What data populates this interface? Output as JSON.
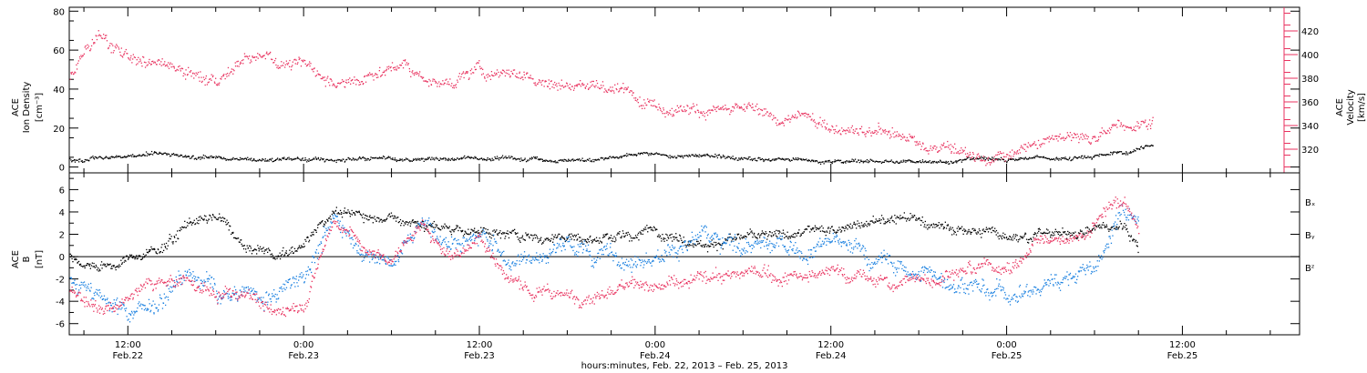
{
  "figure": {
    "xaxis_title": "hours:minutes, Feb. 22, 2013 – Feb. 25, 2013"
  },
  "colors": {
    "black": "#000000",
    "pink": "#e8325f",
    "blue": "#1a80e0"
  },
  "chart_data": [
    {
      "type": "scatter",
      "panel": "top",
      "ylabel_left": [
        "ACE",
        "Ion Density",
        "[cm⁻³]"
      ],
      "ylabel_right": [
        "ACE",
        "Velocity",
        "[km/s]"
      ],
      "xlim_hours": [
        8,
        92
      ],
      "x_ticks": [
        {
          "hour": 12,
          "label": "12:00",
          "sub": "Feb.22"
        },
        {
          "hour": 24,
          "label": "0:00",
          "sub": "Feb.23"
        },
        {
          "hour": 36,
          "label": "12:00",
          "sub": "Feb.23"
        },
        {
          "hour": 48,
          "label": "0:00",
          "sub": "Feb.24"
        },
        {
          "hour": 60,
          "label": "12:00",
          "sub": "Feb.24"
        },
        {
          "hour": 72,
          "label": "0:00",
          "sub": "Feb.25"
        },
        {
          "hour": 84,
          "label": "12:00",
          "sub": "Feb.25"
        }
      ],
      "ylim_left": [
        -3,
        82
      ],
      "yticks_left": [
        0,
        20,
        40,
        60,
        80
      ],
      "ylim_right": [
        300,
        440
      ],
      "yticks_right": [
        320,
        340,
        360,
        380,
        400,
        420
      ],
      "series": [
        {
          "color": "black",
          "axis": "left",
          "dots": 1300,
          "noise": 1.0,
          "start": 8,
          "end": 82,
          "x": [
            8,
            10,
            14,
            18,
            22,
            26,
            30,
            34,
            38,
            42,
            46,
            50,
            54,
            58,
            62,
            66,
            70,
            74,
            78,
            80,
            82
          ],
          "y": [
            4,
            5,
            6,
            5.5,
            4.5,
            4,
            4.5,
            5,
            5,
            4.5,
            5.5,
            6,
            5,
            4,
            3.5,
            3.5,
            4,
            4.5,
            6,
            8,
            12
          ]
        },
        {
          "color": "pink",
          "axis": "right",
          "dots": 1400,
          "noise": 5,
          "start": 8,
          "end": 82,
          "x": [
            8,
            9,
            10,
            11,
            12,
            14,
            16,
            18,
            20,
            22,
            24,
            26,
            28,
            30,
            32,
            34,
            36,
            38,
            40,
            42,
            44,
            46,
            48,
            50,
            52,
            54,
            56,
            58,
            60,
            62,
            64,
            66,
            68,
            70,
            71,
            72,
            73,
            74,
            76,
            78,
            80,
            82
          ],
          "y": [
            380,
            400,
            420,
            405,
            400,
            395,
            382,
            380,
            400,
            398,
            395,
            382,
            385,
            392,
            382,
            378,
            384,
            386,
            380,
            376,
            372,
            368,
            362,
            358,
            353,
            348,
            342,
            345,
            338,
            336,
            332,
            326,
            320,
            313,
            311,
            315,
            322,
            327,
            327,
            333,
            342,
            347
          ]
        }
      ]
    },
    {
      "type": "scatter",
      "panel": "bottom",
      "ylabel_left": [
        "ACE",
        "B",
        "[nT]"
      ],
      "xlim_hours": [
        8,
        92
      ],
      "ylim": [
        -7,
        7.5
      ],
      "yticks": [
        -6,
        -4,
        -2,
        0,
        2,
        4,
        6
      ],
      "legend": [
        "Bₓ",
        "Bᵧ",
        "Bᶻ"
      ],
      "series": [
        {
          "color": "black",
          "dots": 1500,
          "noise": 0.45,
          "start": 8,
          "end": 81,
          "x": [
            8,
            10,
            12,
            14,
            16,
            18,
            20,
            22,
            24,
            26,
            28,
            30,
            32,
            34,
            36,
            38,
            40,
            42,
            44,
            46,
            48,
            50,
            52,
            54,
            56,
            58,
            60,
            62,
            64,
            66,
            68,
            70,
            72,
            74,
            76,
            78,
            80,
            81
          ],
          "y": [
            0,
            -1,
            0,
            1,
            3,
            4,
            1,
            0,
            1,
            4,
            3.5,
            4,
            3,
            2.5,
            2.5,
            2,
            1.5,
            2,
            1.5,
            2,
            2.5,
            2,
            1.5,
            1.5,
            1.5,
            2,
            2.5,
            3,
            3,
            3,
            2.5,
            2.5,
            2,
            2,
            2,
            2.5,
            3,
            0.5
          ]
        },
        {
          "color": "blue",
          "dots": 1600,
          "noise": 0.75,
          "start": 8,
          "end": 81,
          "x": [
            8,
            10,
            12,
            14,
            16,
            18,
            20,
            22,
            24,
            26,
            28,
            30,
            32,
            34,
            36,
            38,
            40,
            42,
            44,
            46,
            48,
            50,
            52,
            54,
            56,
            58,
            60,
            62,
            64,
            66,
            68,
            70,
            72,
            74,
            76,
            78,
            80,
            81
          ],
          "y": [
            -2,
            -4,
            -5,
            -4,
            -1,
            -3,
            -3,
            -4,
            -2,
            3,
            1,
            -1,
            3,
            1,
            2,
            0,
            0,
            1,
            0,
            0.5,
            0.5,
            1,
            1,
            0.5,
            1,
            0.5,
            1.5,
            0,
            -1,
            -1.5,
            -2.5,
            -2.5,
            -3,
            -3,
            -2,
            -1,
            4,
            3
          ]
        },
        {
          "color": "pink",
          "dots": 1500,
          "noise": 0.55,
          "start": 8,
          "end": 81,
          "x": [
            8,
            10,
            12,
            14,
            16,
            18,
            20,
            22,
            24,
            26,
            28,
            30,
            32,
            34,
            36,
            38,
            40,
            42,
            44,
            46,
            48,
            50,
            52,
            54,
            56,
            58,
            60,
            62,
            64,
            66,
            68,
            70,
            72,
            74,
            76,
            78,
            80,
            81
          ],
          "y": [
            -3,
            -4.5,
            -4,
            -2,
            -2,
            -4,
            -3,
            -5.5,
            -4,
            3,
            1,
            0,
            3,
            0,
            2,
            -2,
            -3,
            -3.5,
            -3,
            -2.5,
            -2.5,
            -2,
            -2,
            -1.5,
            -1.5,
            -1.5,
            -1.5,
            -2,
            -2.5,
            -2,
            -1,
            -0.5,
            -1,
            1,
            2,
            3,
            5,
            2
          ]
        }
      ]
    }
  ]
}
